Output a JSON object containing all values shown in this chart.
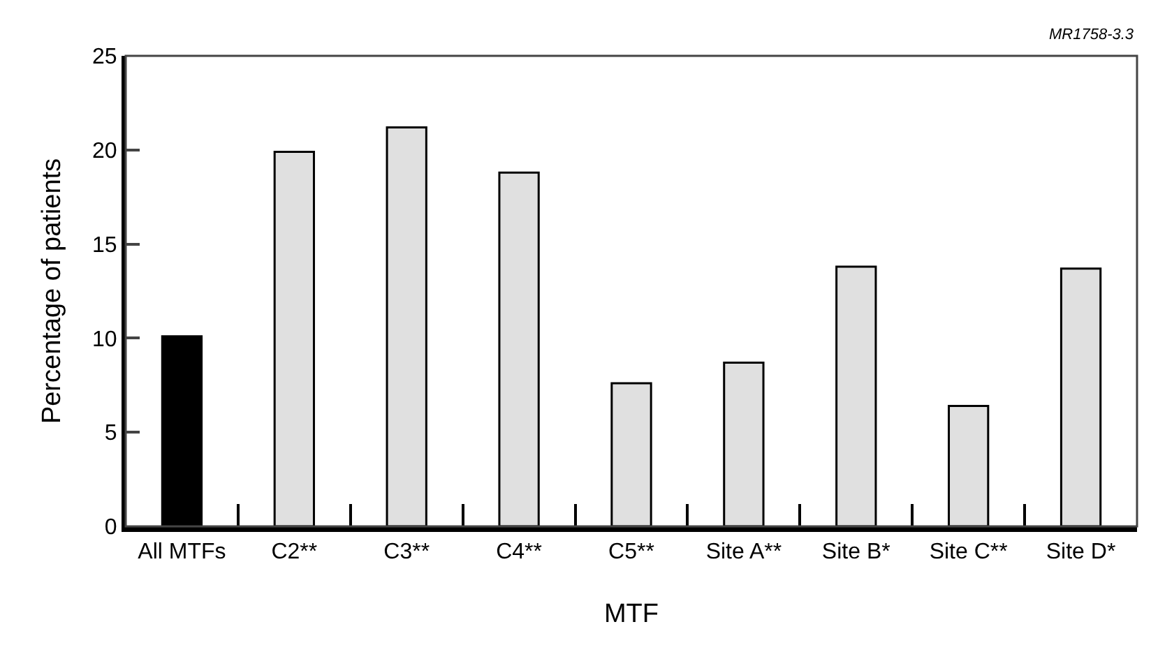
{
  "chart_data": {
    "type": "bar",
    "xlabel": "MTF",
    "ylabel": "Percentage of patients",
    "annotations": [
      "MR1758-3.3"
    ],
    "categories": [
      "All MTFs",
      "C2**",
      "C3**",
      "C4**",
      "C5**",
      "Site A**",
      "Site B*",
      "Site C**",
      "Site D*"
    ],
    "values": [
      10.1,
      19.9,
      21.2,
      18.8,
      7.6,
      8.7,
      13.8,
      6.4,
      13.7
    ],
    "colors": [
      "#000000",
      "#e0e0e0",
      "#e0e0e0",
      "#e0e0e0",
      "#e0e0e0",
      "#e0e0e0",
      "#e0e0e0",
      "#e0e0e0",
      "#e0e0e0"
    ],
    "ylim": [
      0,
      25
    ],
    "yticks": [
      0,
      5,
      10,
      15,
      20,
      25
    ]
  }
}
